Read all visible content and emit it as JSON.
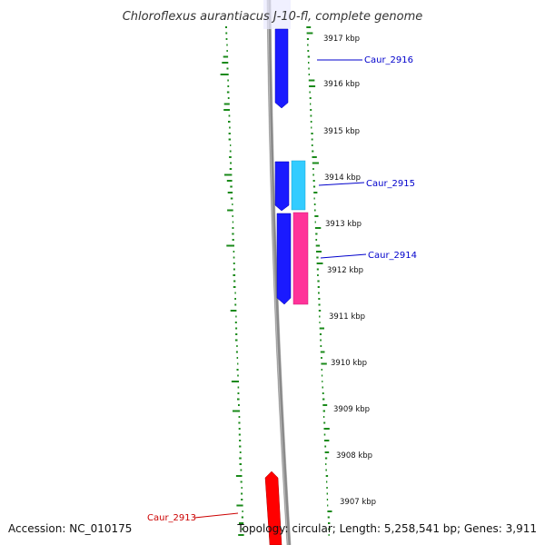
{
  "title": "Chloroflexus aurantiacus J-10-fl, complete genome",
  "footer": {
    "accession": "Accession: NC_010175",
    "summary": "Topology: circular; Length: 5,258,541 bp; Genes: 3,911"
  },
  "ticks": [
    {
      "label": "3917 kbp"
    },
    {
      "label": "3916 kbp"
    },
    {
      "label": "3915 kbp"
    },
    {
      "label": "3914 kbp"
    },
    {
      "label": "3913 kbp"
    },
    {
      "label": "3912 kbp"
    },
    {
      "label": "3911 kbp"
    },
    {
      "label": "3910 kbp"
    },
    {
      "label": "3909 kbp"
    },
    {
      "label": "3908 kbp"
    },
    {
      "label": "3907 kbp"
    }
  ],
  "genes": [
    {
      "label": "Caur_2916",
      "color": "#0000cc"
    },
    {
      "label": "Caur_2915",
      "color": "#0000cc"
    },
    {
      "label": "Caur_2914",
      "color": "#0000cc"
    },
    {
      "label": "Caur_2913",
      "color": "#cc0000"
    }
  ],
  "colors": {
    "backbone": "#888888",
    "forward_cds": "#1a1aff",
    "reverse_cds": "#ff0000",
    "rna_light": "#33ccff",
    "rna_pink": "#ff3399",
    "gc_dots": "#1a8a1a",
    "gene_label_blue": "#0000cc",
    "gene_label_red": "#cc0000"
  }
}
